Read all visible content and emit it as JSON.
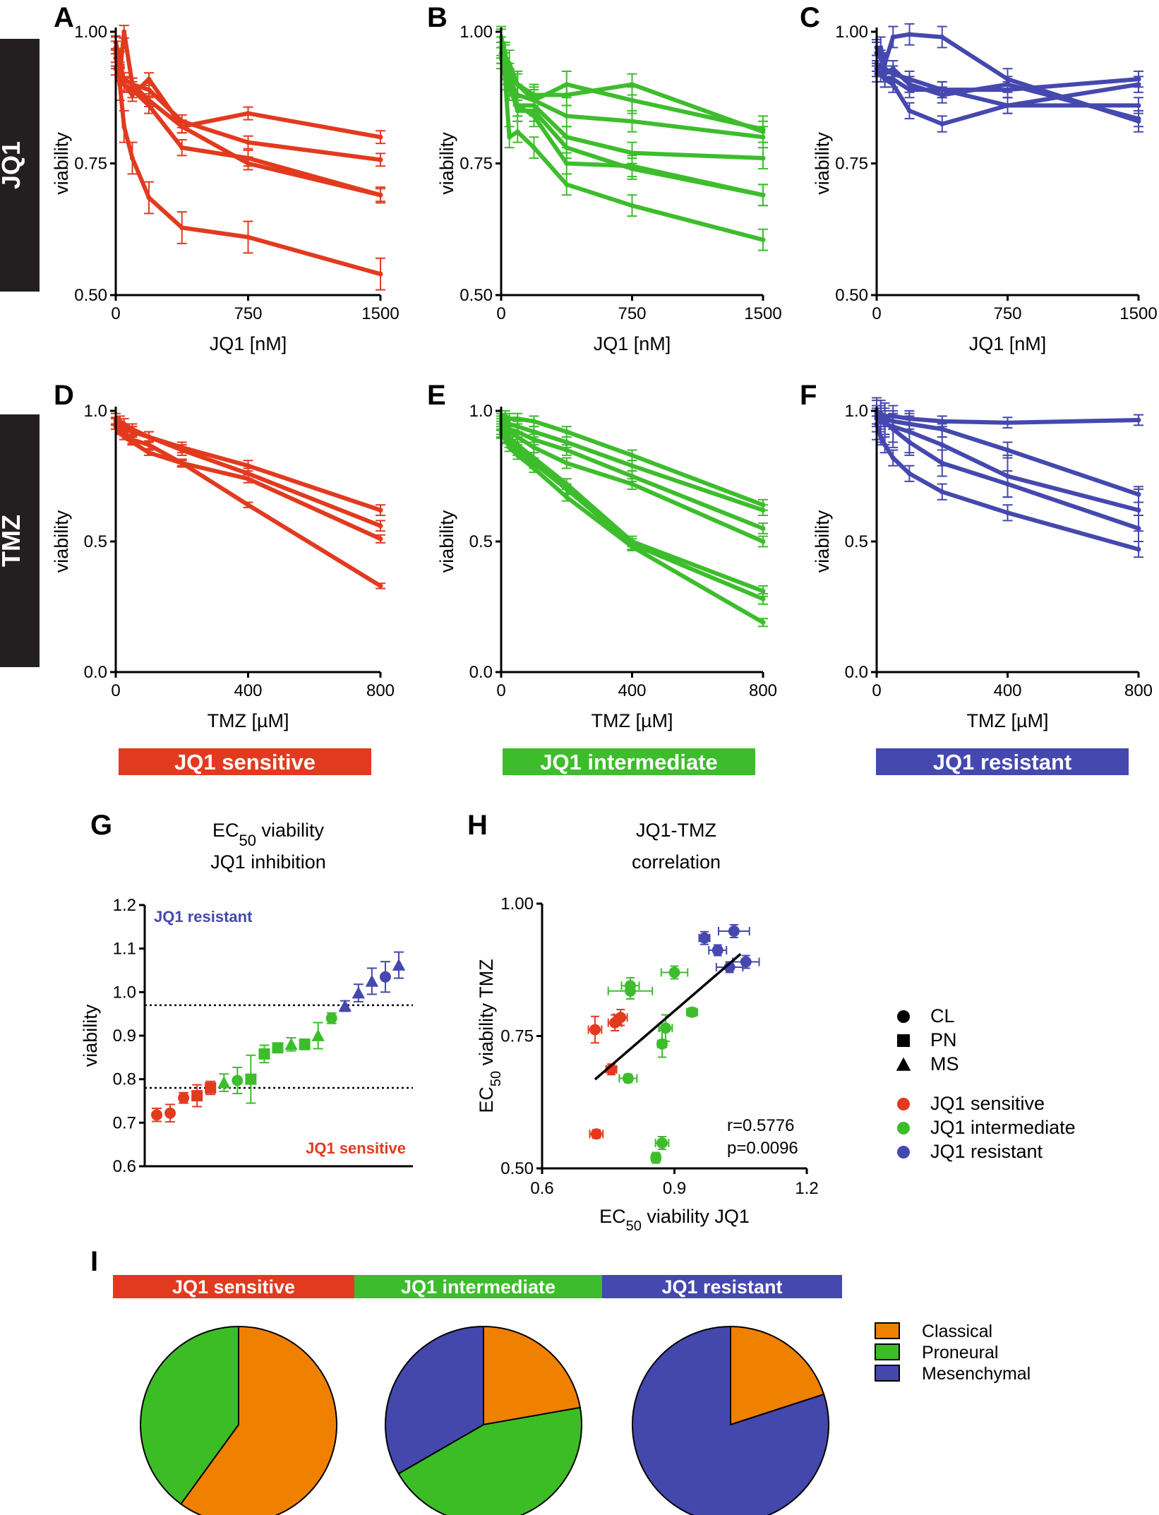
{
  "colors": {
    "sensitive": "#e23a1f",
    "intermediate": "#3dbd2c",
    "resistant": "#4548ae",
    "classical": "#f08000",
    "proneural": "#3cbd26",
    "mesenchymal": "#4448ad",
    "black": "#000000"
  },
  "side_labels": {
    "jq1": "JQ1",
    "tmz": "TMZ"
  },
  "group_banners": {
    "sensitive": "JQ1 sensitive",
    "intermediate": "JQ1 intermediate",
    "resistant": "JQ1 resistant"
  },
  "chart_data": [
    {
      "id": "A",
      "type": "line",
      "group": "sensitive",
      "ylabel": "viability",
      "xlabel": "JQ1 [nM]",
      "xlim": [
        0,
        1500
      ],
      "ylim": [
        0.5,
        1.0
      ],
      "xticks": [
        "0",
        "750",
        "1500"
      ],
      "yticks": [
        "0.50",
        "0.75",
        "1.00"
      ],
      "x": [
        0,
        23,
        47,
        94,
        188,
        375,
        750,
        1500
      ],
      "series": [
        {
          "values": [
            0.97,
            0.93,
            0.91,
            0.9,
            0.89,
            0.83,
            0.79,
            0.757
          ],
          "err": 0.012
        },
        {
          "values": [
            0.95,
            0.92,
            0.9,
            0.89,
            0.86,
            0.78,
            0.76,
            0.69
          ],
          "err": 0.015
        },
        {
          "values": [
            0.93,
            0.92,
            1.0,
            0.9,
            0.87,
            0.82,
            0.845,
            0.8
          ],
          "err": 0.012
        },
        {
          "values": [
            0.98,
            0.95,
            0.9,
            0.88,
            0.91,
            0.82,
            0.75,
            0.69
          ],
          "err": 0.012
        },
        {
          "values": [
            0.96,
            0.9,
            0.82,
            0.76,
            0.685,
            0.628,
            0.61,
            0.54
          ],
          "err": 0.03
        }
      ]
    },
    {
      "id": "B",
      "type": "line",
      "group": "intermediate",
      "ylabel": "viability",
      "xlabel": "JQ1 [nM]",
      "xlim": [
        0,
        1500
      ],
      "ylim": [
        0.5,
        1.0
      ],
      "xticks": [
        "0",
        "750",
        "1500"
      ],
      "yticks": [
        "0.50",
        "0.75",
        "1.00"
      ],
      "x": [
        0,
        23,
        47,
        94,
        188,
        375,
        750,
        1500
      ],
      "series": [
        {
          "values": [
            0.97,
            0.94,
            0.92,
            0.9,
            0.88,
            0.88,
            0.9,
            0.81
          ],
          "err": 0.02
        },
        {
          "values": [
            0.98,
            0.95,
            0.94,
            0.9,
            0.87,
            0.9,
            0.87,
            0.815
          ],
          "err": 0.025
        },
        {
          "values": [
            0.96,
            0.93,
            0.91,
            0.88,
            0.87,
            0.84,
            0.83,
            0.8
          ],
          "err": 0.02
        },
        {
          "values": [
            0.95,
            0.92,
            0.89,
            0.86,
            0.86,
            0.8,
            0.77,
            0.76
          ],
          "err": 0.02
        },
        {
          "values": [
            0.97,
            0.93,
            0.9,
            0.85,
            0.85,
            0.78,
            0.74,
            0.69
          ],
          "err": 0.02
        },
        {
          "values": [
            0.99,
            0.96,
            0.91,
            0.86,
            0.84,
            0.75,
            0.745,
            0.69
          ],
          "err": 0.02
        },
        {
          "values": [
            0.96,
            0.91,
            0.8,
            0.81,
            0.78,
            0.71,
            0.67,
            0.605
          ],
          "err": 0.02
        }
      ]
    },
    {
      "id": "C",
      "type": "line",
      "group": "resistant",
      "ylabel": "viability",
      "xlabel": "JQ1 [nM]",
      "xlim": [
        0,
        1500
      ],
      "ylim": [
        0.5,
        1.0
      ],
      "xticks": [
        "0",
        "750",
        "1500"
      ],
      "yticks": [
        "0.50",
        "0.75",
        "1.00"
      ],
      "x": [
        0,
        23,
        47,
        94,
        188,
        375,
        750,
        1500
      ],
      "series": [
        {
          "values": [
            0.96,
            0.97,
            0.94,
            0.99,
            0.995,
            0.99,
            0.91,
            0.83
          ],
          "err": 0.02
        },
        {
          "values": [
            0.93,
            0.92,
            0.91,
            0.91,
            0.89,
            0.89,
            0.89,
            0.91
          ],
          "err": 0.015
        },
        {
          "values": [
            0.94,
            0.93,
            0.92,
            0.93,
            0.9,
            0.88,
            0.9,
            0.835
          ],
          "err": 0.015
        },
        {
          "values": [
            0.92,
            0.93,
            0.91,
            0.9,
            0.85,
            0.825,
            0.86,
            0.86
          ],
          "err": 0.015
        },
        {
          "values": [
            0.97,
            0.95,
            0.93,
            0.92,
            0.91,
            0.89,
            0.86,
            0.9
          ],
          "err": 0.015
        }
      ]
    },
    {
      "id": "D",
      "type": "line",
      "group": "sensitive",
      "ylabel": "viability",
      "xlabel": "TMZ [µM]",
      "xlim": [
        0,
        800
      ],
      "ylim": [
        0.0,
        1.0
      ],
      "xticks": [
        "0",
        "400",
        "800"
      ],
      "yticks": [
        "0.0",
        "0.5",
        "1.0"
      ],
      "x": [
        0,
        12.5,
        25,
        50,
        100,
        200,
        400,
        800
      ],
      "series": [
        {
          "values": [
            0.97,
            0.96,
            0.95,
            0.93,
            0.9,
            0.86,
            0.79,
            0.62
          ],
          "err": 0.02
        },
        {
          "values": [
            0.95,
            0.94,
            0.93,
            0.92,
            0.9,
            0.85,
            0.76,
            0.56
          ],
          "err": 0.02
        },
        {
          "values": [
            0.96,
            0.93,
            0.92,
            0.89,
            0.87,
            0.8,
            0.74,
            0.51
          ],
          "err": 0.015
        },
        {
          "values": [
            0.94,
            0.92,
            0.9,
            0.88,
            0.84,
            0.8,
            0.64,
            0.33
          ],
          "err": 0.01
        }
      ]
    },
    {
      "id": "E",
      "type": "line",
      "group": "intermediate",
      "ylabel": "viability",
      "xlabel": "TMZ [µM]",
      "xlim": [
        0,
        800
      ],
      "ylim": [
        0.0,
        1.0
      ],
      "xticks": [
        "0",
        "400",
        "800"
      ],
      "yticks": [
        "0.0",
        "0.5",
        "1.0"
      ],
      "x": [
        0,
        12.5,
        25,
        50,
        100,
        200,
        400,
        800
      ],
      "series": [
        {
          "values": [
            0.98,
            0.98,
            0.97,
            0.97,
            0.96,
            0.92,
            0.83,
            0.64
          ],
          "err": 0.02
        },
        {
          "values": [
            0.97,
            0.96,
            0.95,
            0.94,
            0.92,
            0.88,
            0.79,
            0.62
          ],
          "err": 0.02
        },
        {
          "values": [
            0.96,
            0.95,
            0.93,
            0.92,
            0.89,
            0.85,
            0.75,
            0.55
          ],
          "err": 0.02
        },
        {
          "values": [
            0.95,
            0.94,
            0.92,
            0.9,
            0.86,
            0.8,
            0.72,
            0.5
          ],
          "err": 0.02
        },
        {
          "values": [
            0.93,
            0.92,
            0.9,
            0.87,
            0.82,
            0.72,
            0.5,
            0.31
          ],
          "err": 0.02
        },
        {
          "values": [
            0.92,
            0.9,
            0.88,
            0.85,
            0.8,
            0.7,
            0.49,
            0.28
          ],
          "err": 0.02
        },
        {
          "values": [
            0.91,
            0.89,
            0.86,
            0.83,
            0.78,
            0.67,
            0.48,
            0.19
          ],
          "err": 0.015
        }
      ]
    },
    {
      "id": "F",
      "type": "line",
      "group": "resistant",
      "ylabel": "viability",
      "xlabel": "TMZ [µM]",
      "xlim": [
        0,
        800
      ],
      "ylim": [
        0.0,
        1.0
      ],
      "xticks": [
        "0",
        "400",
        "800"
      ],
      "yticks": [
        "0.0",
        "0.5",
        "1.0"
      ],
      "x": [
        0,
        12.5,
        25,
        50,
        100,
        200,
        400,
        800
      ],
      "series": [
        {
          "values": [
            1.0,
            0.99,
            0.98,
            0.98,
            0.97,
            0.96,
            0.955,
            0.965
          ],
          "err": 0.02
        },
        {
          "values": [
            0.98,
            0.97,
            0.97,
            0.96,
            0.95,
            0.93,
            0.85,
            0.68
          ],
          "err": 0.03
        },
        {
          "values": [
            0.97,
            0.96,
            0.95,
            0.94,
            0.92,
            0.87,
            0.75,
            0.62
          ],
          "err": 0.08
        },
        {
          "values": [
            0.99,
            0.97,
            0.96,
            0.93,
            0.88,
            0.8,
            0.72,
            0.55
          ],
          "err": 0.05
        },
        {
          "values": [
            0.95,
            0.9,
            0.87,
            0.82,
            0.76,
            0.69,
            0.61,
            0.47
          ],
          "err": 0.03
        }
      ]
    },
    {
      "id": "G",
      "type": "scatter",
      "title_line1": "EC",
      "title_sub": "50",
      "title_line1_rest": " viability",
      "title_line2": "JQ1 inhibition",
      "ylabel": "viability",
      "ylim": [
        0.6,
        1.2
      ],
      "yticks": [
        "0.6",
        "0.7",
        "0.8",
        "0.9",
        "1.0",
        "1.1",
        "1.2"
      ],
      "thresholds": [
        0.97,
        0.78
      ],
      "annot_top": "JQ1 resistant",
      "annot_bottom": "JQ1 sensitive",
      "points": [
        {
          "v": 0.718,
          "err": 0.015,
          "group": "sensitive",
          "shape": "circle"
        },
        {
          "v": 0.722,
          "err": 0.02,
          "group": "sensitive",
          "shape": "circle"
        },
        {
          "v": 0.757,
          "err": 0.012,
          "group": "sensitive",
          "shape": "circle"
        },
        {
          "v": 0.762,
          "err": 0.025,
          "group": "sensitive",
          "shape": "square"
        },
        {
          "v": 0.78,
          "err": 0.015,
          "group": "sensitive",
          "shape": "square"
        },
        {
          "v": 0.792,
          "err": 0.02,
          "group": "intermediate",
          "shape": "triangle"
        },
        {
          "v": 0.797,
          "err": 0.03,
          "group": "intermediate",
          "shape": "circle"
        },
        {
          "v": 0.8,
          "err": 0.055,
          "group": "intermediate",
          "shape": "square"
        },
        {
          "v": 0.858,
          "err": 0.02,
          "group": "intermediate",
          "shape": "square"
        },
        {
          "v": 0.872,
          "err": 0.01,
          "group": "intermediate",
          "shape": "square"
        },
        {
          "v": 0.88,
          "err": 0.015,
          "group": "intermediate",
          "shape": "triangle"
        },
        {
          "v": 0.88,
          "err": 0.012,
          "group": "intermediate",
          "shape": "square"
        },
        {
          "v": 0.9,
          "err": 0.03,
          "group": "intermediate",
          "shape": "triangle"
        },
        {
          "v": 0.94,
          "err": 0.012,
          "group": "intermediate",
          "shape": "circle"
        },
        {
          "v": 0.968,
          "err": 0.012,
          "group": "resistant",
          "shape": "triangle"
        },
        {
          "v": 0.998,
          "err": 0.02,
          "group": "resistant",
          "shape": "triangle"
        },
        {
          "v": 1.025,
          "err": 0.03,
          "group": "resistant",
          "shape": "triangle"
        },
        {
          "v": 1.035,
          "err": 0.035,
          "group": "resistant",
          "shape": "circle"
        },
        {
          "v": 1.062,
          "err": 0.03,
          "group": "resistant",
          "shape": "triangle"
        }
      ]
    },
    {
      "id": "H",
      "type": "scatter",
      "title_line1": "JQ1-TMZ",
      "title_line2": "correlation",
      "xlabel_pre": "EC",
      "xlabel_sub": "50",
      "xlabel_post": " viability JQ1",
      "ylabel_pre": "EC",
      "ylabel_sub": "50",
      "ylabel_post": " viability TMZ",
      "xlim": [
        0.6,
        1.2
      ],
      "ylim": [
        0.5,
        1.0
      ],
      "xticks": [
        "0.6",
        "0.9",
        "1.2"
      ],
      "yticks": [
        "0.50",
        "0.75",
        "1.00"
      ],
      "fit": {
        "x": [
          0.72,
          1.05
        ],
        "y": [
          0.668,
          0.905
        ]
      },
      "stats": [
        "r=0.5776",
        "p=0.0096"
      ],
      "points": [
        {
          "x": 0.723,
          "y": 0.565,
          "ex": 0.015,
          "ey": 0.008,
          "group": "sensitive"
        },
        {
          "x": 0.757,
          "y": 0.687,
          "ex": 0.012,
          "ey": 0.01,
          "group": "sensitive"
        },
        {
          "x": 0.72,
          "y": 0.762,
          "ex": 0.015,
          "ey": 0.025,
          "group": "sensitive"
        },
        {
          "x": 0.765,
          "y": 0.775,
          "ex": 0.015,
          "ey": 0.015,
          "group": "sensitive"
        },
        {
          "x": 0.778,
          "y": 0.785,
          "ex": 0.015,
          "ey": 0.015,
          "group": "sensitive"
        },
        {
          "x": 0.795,
          "y": 0.67,
          "ex": 0.02,
          "ey": 0.008,
          "group": "intermediate"
        },
        {
          "x": 0.858,
          "y": 0.52,
          "ex": 0.01,
          "ey": 0.01,
          "group": "intermediate"
        },
        {
          "x": 0.872,
          "y": 0.548,
          "ex": 0.015,
          "ey": 0.012,
          "group": "intermediate"
        },
        {
          "x": 0.8,
          "y": 0.835,
          "ex": 0.05,
          "ey": 0.015,
          "group": "intermediate"
        },
        {
          "x": 0.8,
          "y": 0.845,
          "ex": 0.02,
          "ey": 0.015,
          "group": "intermediate"
        },
        {
          "x": 0.872,
          "y": 0.735,
          "ex": 0.01,
          "ey": 0.025,
          "group": "intermediate"
        },
        {
          "x": 0.88,
          "y": 0.765,
          "ex": 0.015,
          "ey": 0.025,
          "group": "intermediate"
        },
        {
          "x": 0.94,
          "y": 0.795,
          "ex": 0.012,
          "ey": 0.008,
          "group": "intermediate"
        },
        {
          "x": 0.9,
          "y": 0.87,
          "ex": 0.03,
          "ey": 0.012,
          "group": "intermediate"
        },
        {
          "x": 0.968,
          "y": 0.935,
          "ex": 0.012,
          "ey": 0.012,
          "group": "resistant"
        },
        {
          "x": 0.998,
          "y": 0.912,
          "ex": 0.02,
          "ey": 0.01,
          "group": "resistant"
        },
        {
          "x": 1.025,
          "y": 0.88,
          "ex": 0.03,
          "ey": 0.01,
          "group": "resistant"
        },
        {
          "x": 1.035,
          "y": 0.948,
          "ex": 0.035,
          "ey": 0.012,
          "group": "resistant"
        },
        {
          "x": 1.062,
          "y": 0.89,
          "ex": 0.03,
          "ey": 0.012,
          "group": "resistant"
        }
      ]
    },
    {
      "id": "I",
      "type": "pie",
      "slices_by_group": [
        {
          "group": "sensitive",
          "slices": [
            {
              "name": "Classical",
              "value": 60
            },
            {
              "name": "Proneural",
              "value": 40
            }
          ]
        },
        {
          "group": "intermediate",
          "slices": [
            {
              "name": "Classical",
              "value": 22.2
            },
            {
              "name": "Proneural",
              "value": 44.4
            },
            {
              "name": "Mesenchymal",
              "value": 33.3
            }
          ]
        },
        {
          "group": "resistant",
          "slices": [
            {
              "name": "Classical",
              "value": 20
            },
            {
              "name": "Mesenchymal",
              "value": 80
            }
          ]
        }
      ]
    }
  ],
  "legend_shapes": [
    {
      "shape": "circle",
      "label": "CL"
    },
    {
      "shape": "square",
      "label": "PN"
    },
    {
      "shape": "triangle",
      "label": "MS"
    }
  ],
  "legend_groups": [
    {
      "group": "sensitive",
      "label": "JQ1 sensitive"
    },
    {
      "group": "intermediate",
      "label": "JQ1 intermediate"
    },
    {
      "group": "resistant",
      "label": "JQ1 resistant"
    }
  ],
  "legend_subtypes": [
    {
      "key": "classical",
      "label": "Classical"
    },
    {
      "key": "proneural",
      "label": "Proneural"
    },
    {
      "key": "mesenchymal",
      "label": "Mesenchymal"
    }
  ]
}
